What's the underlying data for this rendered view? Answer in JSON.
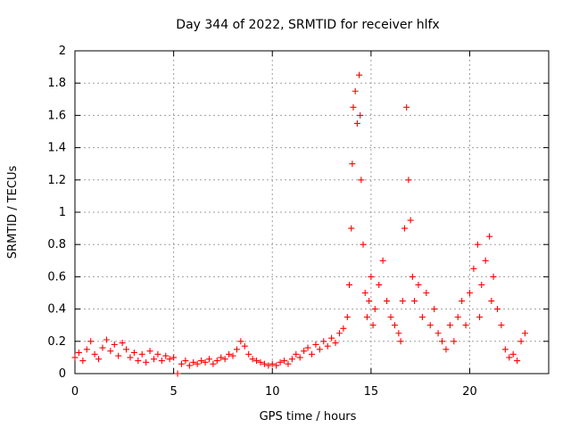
{
  "chart_data": {
    "type": "scatter",
    "title": "Day 344 of 2022, SRMTID for receiver hlfx",
    "xlabel": "GPS time / hours",
    "ylabel": "SRMTID / TECUs",
    "xlim": [
      0,
      24
    ],
    "ylim": [
      0,
      2
    ],
    "x_ticks": [
      0,
      5,
      10,
      15,
      20
    ],
    "x_tick_labels": [
      "0",
      "5",
      "10",
      "15",
      "20"
    ],
    "y_ticks": [
      0,
      0.2,
      0.4,
      0.6,
      0.8,
      1.0,
      1.2,
      1.4,
      1.6,
      1.8,
      2.0
    ],
    "y_tick_labels": [
      "0",
      "0.2",
      "0.4",
      "0.6",
      "0.8",
      "1",
      "1.2",
      "1.4",
      "1.6",
      "1.8",
      "2"
    ],
    "grid": true,
    "marker": "+",
    "series": [
      {
        "name": "SRMTID",
        "color": "#ff0000",
        "points": [
          [
            0.0,
            0.1
          ],
          [
            0.2,
            0.13
          ],
          [
            0.4,
            0.08
          ],
          [
            0.6,
            0.15
          ],
          [
            0.8,
            0.2
          ],
          [
            1.0,
            0.12
          ],
          [
            1.2,
            0.09
          ],
          [
            1.4,
            0.16
          ],
          [
            1.6,
            0.21
          ],
          [
            1.8,
            0.14
          ],
          [
            2.0,
            0.18
          ],
          [
            2.2,
            0.11
          ],
          [
            2.4,
            0.19
          ],
          [
            2.6,
            0.15
          ],
          [
            2.8,
            0.1
          ],
          [
            3.0,
            0.13
          ],
          [
            3.2,
            0.08
          ],
          [
            3.4,
            0.12
          ],
          [
            3.6,
            0.07
          ],
          [
            3.8,
            0.14
          ],
          [
            4.0,
            0.09
          ],
          [
            4.2,
            0.12
          ],
          [
            4.4,
            0.08
          ],
          [
            4.6,
            0.11
          ],
          [
            4.8,
            0.09
          ],
          [
            5.0,
            0.1
          ],
          [
            5.2,
            0.0
          ],
          [
            5.4,
            0.06
          ],
          [
            5.6,
            0.08
          ],
          [
            5.8,
            0.05
          ],
          [
            6.0,
            0.07
          ],
          [
            6.2,
            0.06
          ],
          [
            6.4,
            0.08
          ],
          [
            6.6,
            0.07
          ],
          [
            6.8,
            0.09
          ],
          [
            7.0,
            0.06
          ],
          [
            7.2,
            0.08
          ],
          [
            7.4,
            0.1
          ],
          [
            7.6,
            0.09
          ],
          [
            7.8,
            0.12
          ],
          [
            8.0,
            0.11
          ],
          [
            8.2,
            0.15
          ],
          [
            8.4,
            0.2
          ],
          [
            8.6,
            0.17
          ],
          [
            8.8,
            0.12
          ],
          [
            9.0,
            0.09
          ],
          [
            9.2,
            0.08
          ],
          [
            9.4,
            0.07
          ],
          [
            9.6,
            0.06
          ],
          [
            9.8,
            0.05
          ],
          [
            10.0,
            0.06
          ],
          [
            10.2,
            0.05
          ],
          [
            10.4,
            0.07
          ],
          [
            10.6,
            0.08
          ],
          [
            10.8,
            0.06
          ],
          [
            11.0,
            0.09
          ],
          [
            11.2,
            0.12
          ],
          [
            11.4,
            0.1
          ],
          [
            11.6,
            0.14
          ],
          [
            11.8,
            0.16
          ],
          [
            12.0,
            0.12
          ],
          [
            12.2,
            0.18
          ],
          [
            12.4,
            0.15
          ],
          [
            12.6,
            0.2
          ],
          [
            12.8,
            0.17
          ],
          [
            13.0,
            0.22
          ],
          [
            13.2,
            0.19
          ],
          [
            13.4,
            0.25
          ],
          [
            13.6,
            0.28
          ],
          [
            13.8,
            0.35
          ],
          [
            13.9,
            0.55
          ],
          [
            14.0,
            0.9
          ],
          [
            14.05,
            1.3
          ],
          [
            14.1,
            1.65
          ],
          [
            14.2,
            1.75
          ],
          [
            14.3,
            1.55
          ],
          [
            14.4,
            1.85
          ],
          [
            14.45,
            1.6
          ],
          [
            14.5,
            1.2
          ],
          [
            14.6,
            0.8
          ],
          [
            14.7,
            0.5
          ],
          [
            14.8,
            0.35
          ],
          [
            14.9,
            0.45
          ],
          [
            15.0,
            0.6
          ],
          [
            15.2,
            0.4
          ],
          [
            15.4,
            0.55
          ],
          [
            15.6,
            0.7
          ],
          [
            15.8,
            0.45
          ],
          [
            16.0,
            0.35
          ],
          [
            16.2,
            0.3
          ],
          [
            16.4,
            0.25
          ],
          [
            16.5,
            0.2
          ],
          [
            16.6,
            0.45
          ],
          [
            16.7,
            0.9
          ],
          [
            16.8,
            1.65
          ],
          [
            16.9,
            1.2
          ],
          [
            17.0,
            0.95
          ],
          [
            17.1,
            0.6
          ],
          [
            17.2,
            0.45
          ],
          [
            17.4,
            0.55
          ],
          [
            17.6,
            0.35
          ],
          [
            17.8,
            0.5
          ],
          [
            18.0,
            0.3
          ],
          [
            18.2,
            0.4
          ],
          [
            18.4,
            0.25
          ],
          [
            18.6,
            0.2
          ],
          [
            18.8,
            0.15
          ],
          [
            19.0,
            0.3
          ],
          [
            19.2,
            0.2
          ],
          [
            19.4,
            0.35
          ],
          [
            19.6,
            0.45
          ],
          [
            19.8,
            0.3
          ],
          [
            20.0,
            0.5
          ],
          [
            20.2,
            0.65
          ],
          [
            20.4,
            0.8
          ],
          [
            20.6,
            0.55
          ],
          [
            20.8,
            0.7
          ],
          [
            21.0,
            0.85
          ],
          [
            21.2,
            0.6
          ],
          [
            21.4,
            0.4
          ],
          [
            21.6,
            0.3
          ],
          [
            21.8,
            0.15
          ],
          [
            22.0,
            0.1
          ],
          [
            22.2,
            0.12
          ],
          [
            22.4,
            0.08
          ],
          [
            22.6,
            0.2
          ],
          [
            22.8,
            0.25
          ],
          [
            21.1,
            0.45
          ],
          [
            20.5,
            0.35
          ],
          [
            15.1,
            0.3
          ]
        ]
      }
    ]
  }
}
